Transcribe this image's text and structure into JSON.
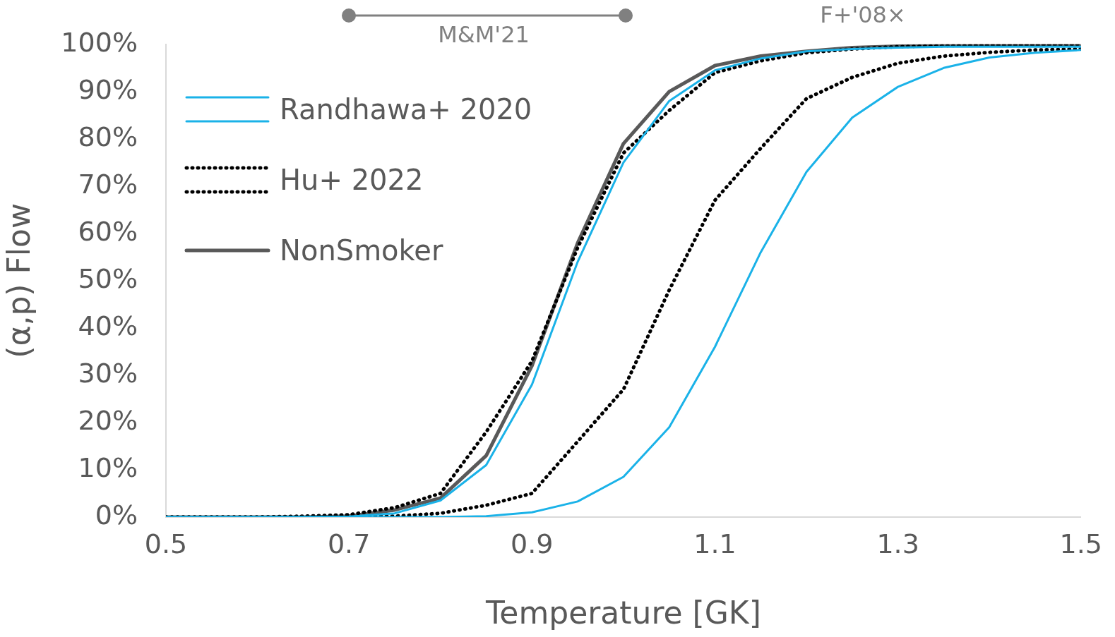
{
  "chart_data": {
    "type": "line",
    "xlabel": "Temperature [GK]",
    "ylabel": "(α,p) Flow",
    "xlim": [
      0.5,
      1.5
    ],
    "xticks": [
      0.5,
      0.7,
      0.9,
      1.1,
      1.3,
      1.5
    ],
    "ylim": [
      0,
      100
    ],
    "yticks": [
      {
        "value": 0,
        "label": "0%"
      },
      {
        "value": 10,
        "label": "10%"
      },
      {
        "value": 20,
        "label": "20%"
      },
      {
        "value": 30,
        "label": "30%"
      },
      {
        "value": 40,
        "label": "40%"
      },
      {
        "value": 50,
        "label": "50%"
      },
      {
        "value": 60,
        "label": "60%"
      },
      {
        "value": 70,
        "label": "70%"
      },
      {
        "value": 80,
        "label": "80%"
      },
      {
        "value": 90,
        "label": "90%"
      },
      {
        "value": 100,
        "label": "100%"
      }
    ],
    "x": [
      0.5,
      0.55,
      0.6,
      0.65,
      0.7,
      0.75,
      0.8,
      0.85,
      0.9,
      0.95,
      1.0,
      1.05,
      1.1,
      1.15,
      1.2,
      1.25,
      1.3,
      1.35,
      1.4,
      1.45,
      1.5
    ],
    "series": [
      {
        "name": "Randhawa+ 2020",
        "color": "#1ab2e8",
        "line_style": "solid",
        "values": [
          0,
          0,
          0,
          0,
          0.1,
          0.8,
          3.5,
          11,
          28,
          54,
          75,
          88,
          94.5,
          97,
          98.5,
          99,
          99.3,
          99.5,
          99.5,
          99.5,
          99.5
        ]
      },
      {
        "color": "#1ab2e8",
        "line_style": "solid",
        "values": [
          0,
          0,
          0,
          0,
          0,
          0,
          0,
          0.2,
          1,
          3.3,
          8.5,
          19,
          36,
          56,
          73,
          84.5,
          91,
          95,
          97.2,
          98.2,
          98.8
        ]
      },
      {
        "name": "Hu+ 2022",
        "color": "#000000",
        "line_style": "dotted",
        "values": [
          0,
          0,
          0,
          0.2,
          0.5,
          2,
          5,
          18,
          33,
          57,
          77,
          86,
          94,
          96.5,
          98.2,
          99,
          99.5,
          99.7,
          99.8,
          99.9,
          100
        ]
      },
      {
        "color": "#000000",
        "line_style": "dotted",
        "values": [
          0,
          0,
          0,
          0,
          0,
          0.2,
          0.8,
          2.5,
          5,
          16,
          27,
          48,
          67,
          78,
          88.5,
          93,
          96,
          97.5,
          98.3,
          98.8,
          99
        ]
      },
      {
        "name": "NonSmoker",
        "color": "#595959",
        "line_style": "solid",
        "values": [
          0,
          0,
          0,
          0,
          0.2,
          1.5,
          4,
          13,
          32,
          58,
          79,
          90,
          95.5,
          97.5,
          98.5,
          99.3,
          99.6,
          99.8,
          99.9,
          100,
          100
        ]
      }
    ],
    "annotations": [
      "M&M'21",
      "F+'08×"
    ],
    "legend": "top left",
    "grid": false,
    "marker": "none"
  }
}
